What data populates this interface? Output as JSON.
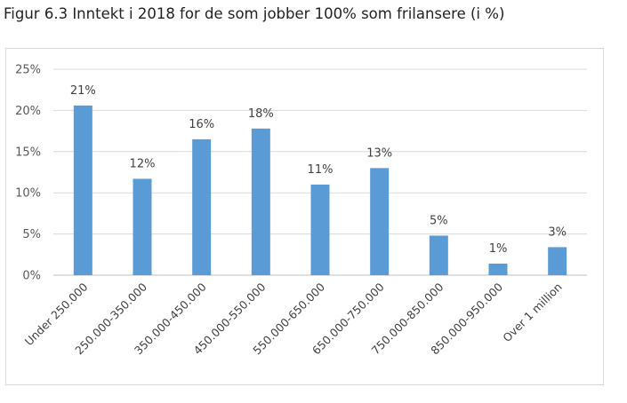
{
  "title": "Figur 6.3 Inntekt i 2018 for de som jobber 100% som frilansere (i %)",
  "chart_data": {
    "type": "bar",
    "title": "Figur 6.3 Inntekt i 2018 for de som jobber 100% som frilansere (i %)",
    "xlabel": "",
    "ylabel": "",
    "categories": [
      "Under 250.000",
      "250.000-350.000",
      "350.000-450.000",
      "450.000-550.000",
      "550.000-650.000",
      "650.000-750.000",
      "750.000-850.000",
      "850.000-950.000",
      "Over 1 million"
    ],
    "values": [
      20.6,
      11.7,
      16.5,
      17.8,
      11.0,
      13.0,
      4.8,
      1.4,
      3.4
    ],
    "data_labels": [
      "21%",
      "12%",
      "16%",
      "18%",
      "11%",
      "13%",
      "5%",
      "1%",
      "3%"
    ],
    "yticks": [
      0,
      5,
      10,
      15,
      20,
      25
    ],
    "ytick_labels": [
      "0%",
      "5%",
      "10%",
      "15%",
      "20%",
      "25%"
    ],
    "ylim": [
      0,
      25
    ],
    "grid": true,
    "legend": "none",
    "bar_color": "#5b9bd5"
  }
}
